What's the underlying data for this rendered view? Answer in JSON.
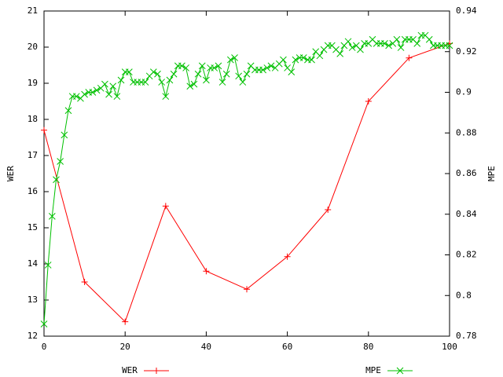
{
  "chart_data": {
    "type": "line",
    "xlim": [
      0,
      100
    ],
    "xticks": [
      0,
      20,
      40,
      60,
      80,
      100
    ],
    "ylim": [
      12,
      21
    ],
    "yticks": [
      12,
      13,
      14,
      15,
      16,
      17,
      18,
      19,
      20,
      21
    ],
    "ylabel": "WER",
    "y2lim": [
      0.78,
      0.94
    ],
    "y2ticks": [
      0.78,
      0.8,
      0.82,
      0.84,
      0.86,
      0.88,
      0.9,
      0.92,
      0.94
    ],
    "y2label": "MPE",
    "series": [
      {
        "name": "WER",
        "color": "#ff0000",
        "marker": "+",
        "x": [
          0,
          10,
          20,
          30,
          40,
          50,
          60,
          70,
          80,
          90,
          100
        ],
        "values": [
          17.7,
          13.5,
          12.4,
          15.6,
          13.8,
          13.3,
          14.2,
          15.5,
          18.5,
          19.7,
          20.1
        ]
      },
      {
        "name": "MPE",
        "color": "#00c000",
        "marker": "x",
        "axis": "y2",
        "x": [
          0,
          1,
          2,
          3,
          4,
          5,
          6,
          7,
          8,
          9,
          10,
          11,
          12,
          13,
          14,
          15,
          16,
          17,
          18,
          19,
          20,
          21,
          22,
          23,
          24,
          25,
          26,
          27,
          28,
          29,
          30,
          31,
          32,
          33,
          34,
          35,
          36,
          37,
          38,
          39,
          40,
          41,
          42,
          43,
          44,
          45,
          46,
          47,
          48,
          49,
          50,
          51,
          52,
          53,
          54,
          55,
          56,
          57,
          58,
          59,
          60,
          61,
          62,
          63,
          64,
          65,
          66,
          67,
          68,
          69,
          70,
          71,
          72,
          73,
          74,
          75,
          76,
          77,
          78,
          79,
          80,
          81,
          82,
          83,
          84,
          85,
          86,
          87,
          88,
          89,
          90,
          91,
          92,
          93,
          94,
          95,
          96,
          97,
          98,
          99,
          100
        ],
        "values": [
          0.786,
          0.815,
          0.839,
          0.857,
          0.866,
          0.879,
          0.891,
          0.898,
          0.898,
          0.897,
          0.899,
          0.9,
          0.9,
          0.901,
          0.902,
          0.904,
          0.899,
          0.903,
          0.898,
          0.906,
          0.91,
          0.91,
          0.905,
          0.905,
          0.905,
          0.905,
          0.908,
          0.91,
          0.909,
          0.905,
          0.898,
          0.906,
          0.909,
          0.913,
          0.913,
          0.912,
          0.903,
          0.904,
          0.909,
          0.913,
          0.906,
          0.912,
          0.912,
          0.913,
          0.905,
          0.909,
          0.916,
          0.917,
          0.908,
          0.905,
          0.909,
          0.913,
          0.911,
          0.911,
          0.911,
          0.912,
          0.913,
          0.912,
          0.914,
          0.916,
          0.912,
          0.91,
          0.916,
          0.917,
          0.917,
          0.916,
          0.916,
          0.92,
          0.918,
          0.921,
          0.923,
          0.923,
          0.921,
          0.919,
          0.923,
          0.925,
          0.922,
          0.923,
          0.921,
          0.924,
          0.924,
          0.926,
          0.924,
          0.924,
          0.924,
          0.923,
          0.924,
          0.926,
          0.922,
          0.926,
          0.926,
          0.926,
          0.924,
          0.928,
          0.928,
          0.926,
          0.923,
          0.923,
          0.923,
          0.923,
          0.923
        ]
      }
    ]
  }
}
